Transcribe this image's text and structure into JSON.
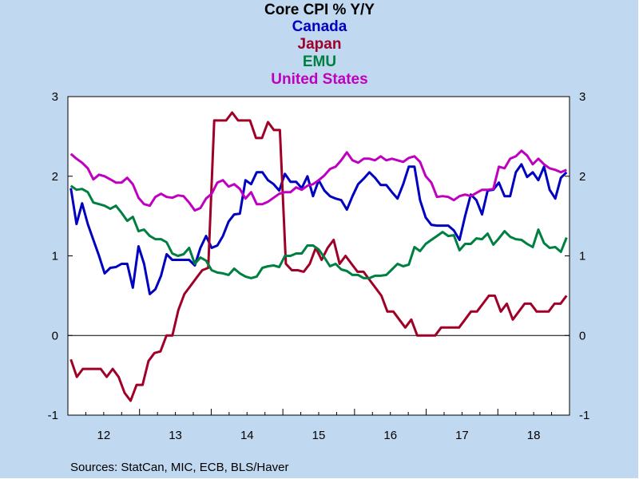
{
  "chart_data": {
    "type": "line",
    "title": "Core CPI % Y/Y",
    "source": "Sources:  StatCan, MIC, ECB, BLS/Haver",
    "x_start": "2012-01",
    "x_end": "2018-12",
    "x_ticks": [
      "12",
      "13",
      "14",
      "15",
      "16",
      "17",
      "18"
    ],
    "ylim": [
      -1,
      3
    ],
    "y_ticks": [
      -1,
      0,
      1,
      2,
      3
    ],
    "grid": false,
    "zero_line": true,
    "dual_y_axis": true,
    "legend_placement": "top-center",
    "series": [
      {
        "name": "Canada",
        "color": "#0000c0",
        "values": [
          1.85,
          1.4,
          1.66,
          1.4,
          1.2,
          1.0,
          0.78,
          0.85,
          0.86,
          0.9,
          0.9,
          0.6,
          1.12,
          0.9,
          0.52,
          0.58,
          0.75,
          1.02,
          0.95,
          0.95,
          0.95,
          0.95,
          0.88,
          1.1,
          1.25,
          1.1,
          1.13,
          1.25,
          1.43,
          1.52,
          1.53,
          1.95,
          1.9,
          2.05,
          2.05,
          1.95,
          1.9,
          1.82,
          2.03,
          1.93,
          1.93,
          1.85,
          2.0,
          1.75,
          1.95,
          1.82,
          1.75,
          1.72,
          1.7,
          1.58,
          1.75,
          1.9,
          1.97,
          2.05,
          1.98,
          1.89,
          1.89,
          1.8,
          1.72,
          1.9,
          2.12,
          2.12,
          1.7,
          1.48,
          1.39,
          1.38,
          1.38,
          1.38,
          1.32,
          1.2,
          1.5,
          1.77,
          1.7,
          1.52,
          1.82,
          1.83,
          1.92,
          1.75,
          1.75,
          2.05,
          2.15,
          1.99,
          2.05,
          1.95,
          2.12,
          1.83,
          1.72,
          1.98,
          2.05
        ]
      },
      {
        "name": "Japan",
        "color": "#a00028",
        "values": [
          -0.3,
          -0.52,
          -0.42,
          -0.42,
          -0.42,
          -0.42,
          -0.52,
          -0.42,
          -0.52,
          -0.72,
          -0.82,
          -0.62,
          -0.62,
          -0.32,
          -0.22,
          -0.2,
          0.0,
          0.0,
          0.32,
          0.52,
          0.62,
          0.72,
          0.82,
          0.85,
          2.7,
          2.7,
          2.7,
          2.8,
          2.7,
          2.7,
          2.7,
          2.48,
          2.48,
          2.68,
          2.58,
          2.58,
          0.9,
          0.82,
          0.82,
          0.8,
          0.9,
          1.1,
          0.95,
          1.1,
          1.2,
          0.9,
          1.0,
          0.9,
          0.8,
          0.8,
          0.7,
          0.6,
          0.5,
          0.3,
          0.3,
          0.2,
          0.1,
          0.2,
          0.0,
          0.0,
          0.0,
          0.0,
          0.1,
          0.1,
          0.1,
          0.1,
          0.2,
          0.3,
          0.3,
          0.4,
          0.5,
          0.5,
          0.3,
          0.4,
          0.2,
          0.3,
          0.4,
          0.4,
          0.3,
          0.3,
          0.3,
          0.4,
          0.4,
          0.5
        ]
      },
      {
        "name": "EMU",
        "color": "#008040",
        "values": [
          1.88,
          1.83,
          1.84,
          1.8,
          1.67,
          1.65,
          1.63,
          1.59,
          1.63,
          1.54,
          1.44,
          1.49,
          1.31,
          1.33,
          1.25,
          1.21,
          1.21,
          1.17,
          1.03,
          1.0,
          1.02,
          1.1,
          0.9,
          0.98,
          0.94,
          0.82,
          0.79,
          0.78,
          0.76,
          0.84,
          0.78,
          0.74,
          0.72,
          0.74,
          0.85,
          0.87,
          0.88,
          0.86,
          1.0,
          1.0,
          1.03,
          1.03,
          1.13,
          1.13,
          1.08,
          0.98,
          0.87,
          0.9,
          0.83,
          0.81,
          0.76,
          0.76,
          0.72,
          0.72,
          0.75,
          0.75,
          0.76,
          0.83,
          0.9,
          0.87,
          0.89,
          1.11,
          1.06,
          1.15,
          1.2,
          1.25,
          1.3,
          1.25,
          1.26,
          1.07,
          1.15,
          1.15,
          1.22,
          1.21,
          1.28,
          1.14,
          1.22,
          1.31,
          1.24,
          1.21,
          1.2,
          1.15,
          1.11,
          1.33,
          1.16,
          1.1,
          1.11,
          1.05,
          1.23
        ]
      },
      {
        "name": "United States",
        "color": "#c000c0",
        "values": [
          2.28,
          2.22,
          2.17,
          2.1,
          1.96,
          2.02,
          2.0,
          1.96,
          1.92,
          1.92,
          1.98,
          1.9,
          1.73,
          1.65,
          1.63,
          1.74,
          1.78,
          1.74,
          1.73,
          1.76,
          1.75,
          1.67,
          1.57,
          1.6,
          1.72,
          1.78,
          1.92,
          1.95,
          1.87,
          1.9,
          1.84,
          1.72,
          1.8,
          1.65,
          1.65,
          1.68,
          1.73,
          1.78,
          1.8,
          1.8,
          1.86,
          1.83,
          1.88,
          1.9,
          1.95,
          2.01,
          2.09,
          2.12,
          2.2,
          2.3,
          2.2,
          2.17,
          2.22,
          2.22,
          2.2,
          2.25,
          2.2,
          2.22,
          2.2,
          2.18,
          2.23,
          2.25,
          2.18,
          2.0,
          1.92,
          1.74,
          1.75,
          1.74,
          1.7,
          1.75,
          1.77,
          1.75,
          1.79,
          1.83,
          1.83,
          1.84,
          2.12,
          2.1,
          2.22,
          2.25,
          2.32,
          2.26,
          2.15,
          2.22,
          2.15,
          2.1,
          2.08,
          2.05,
          2.08
        ]
      }
    ]
  }
}
